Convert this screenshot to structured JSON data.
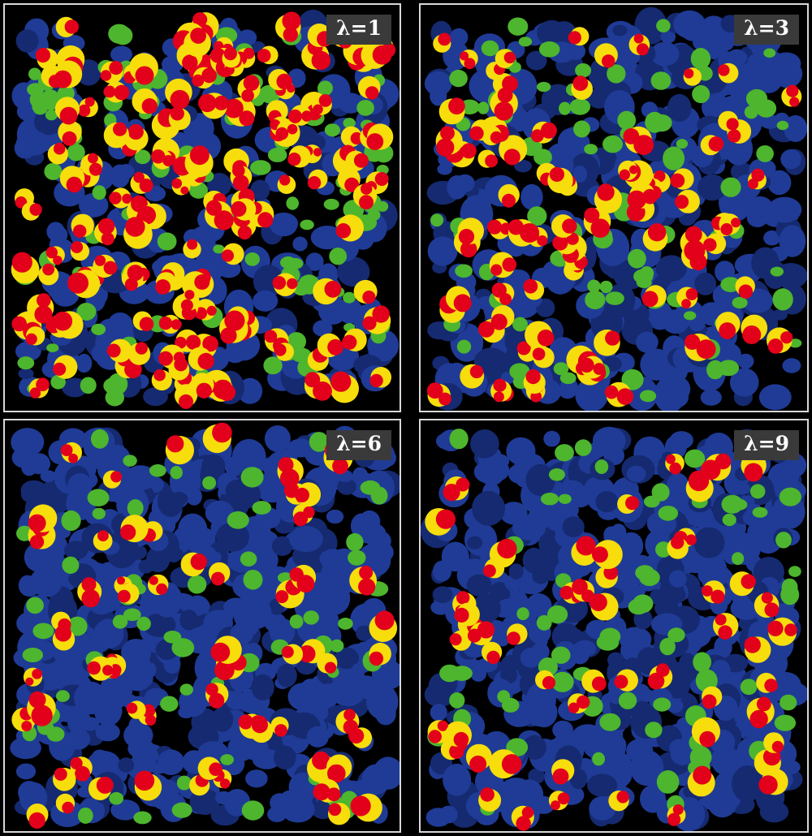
{
  "panels": [
    {
      "label": "λ=1",
      "scene": {
        "blue": 0.3,
        "green": 0.2,
        "molecules": 150,
        "yellow_color": "#f7dd0b",
        "red_color": "#e3001b"
      }
    },
    {
      "label": "λ=3",
      "scene": {
        "blue": 0.55,
        "green": 0.15,
        "molecules": 85
      }
    },
    {
      "label": "λ=6",
      "scene": {
        "blue": 0.75,
        "green": 0.1,
        "molecules": 60
      }
    },
    {
      "label": "λ=9",
      "scene": {
        "blue": 0.82,
        "green": 0.1,
        "molecules": 55
      }
    }
  ],
  "colors": {
    "blue": "#1f3b96",
    "dark_blue": "#152a70",
    "green": "#4db52e",
    "yellow": "#f7dd0b",
    "red": "#e3001b",
    "background": "#000000"
  }
}
